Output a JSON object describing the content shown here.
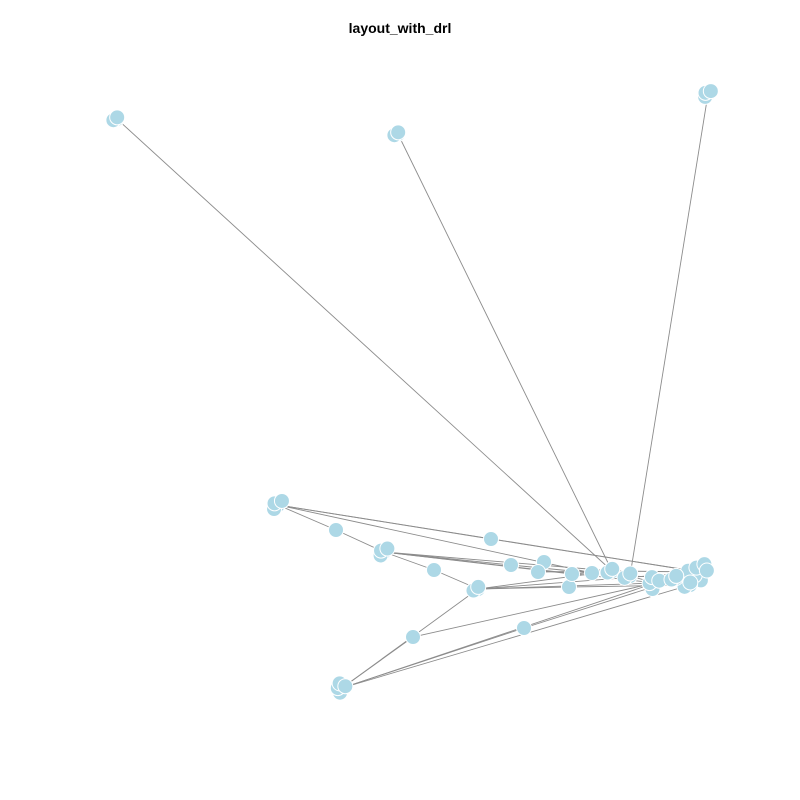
{
  "plot": {
    "title": "layout_with_drl",
    "vertex_color": "#add8e6",
    "vertex_border": "#ffffff",
    "edge_color": "#8c8c8c"
  }
}
